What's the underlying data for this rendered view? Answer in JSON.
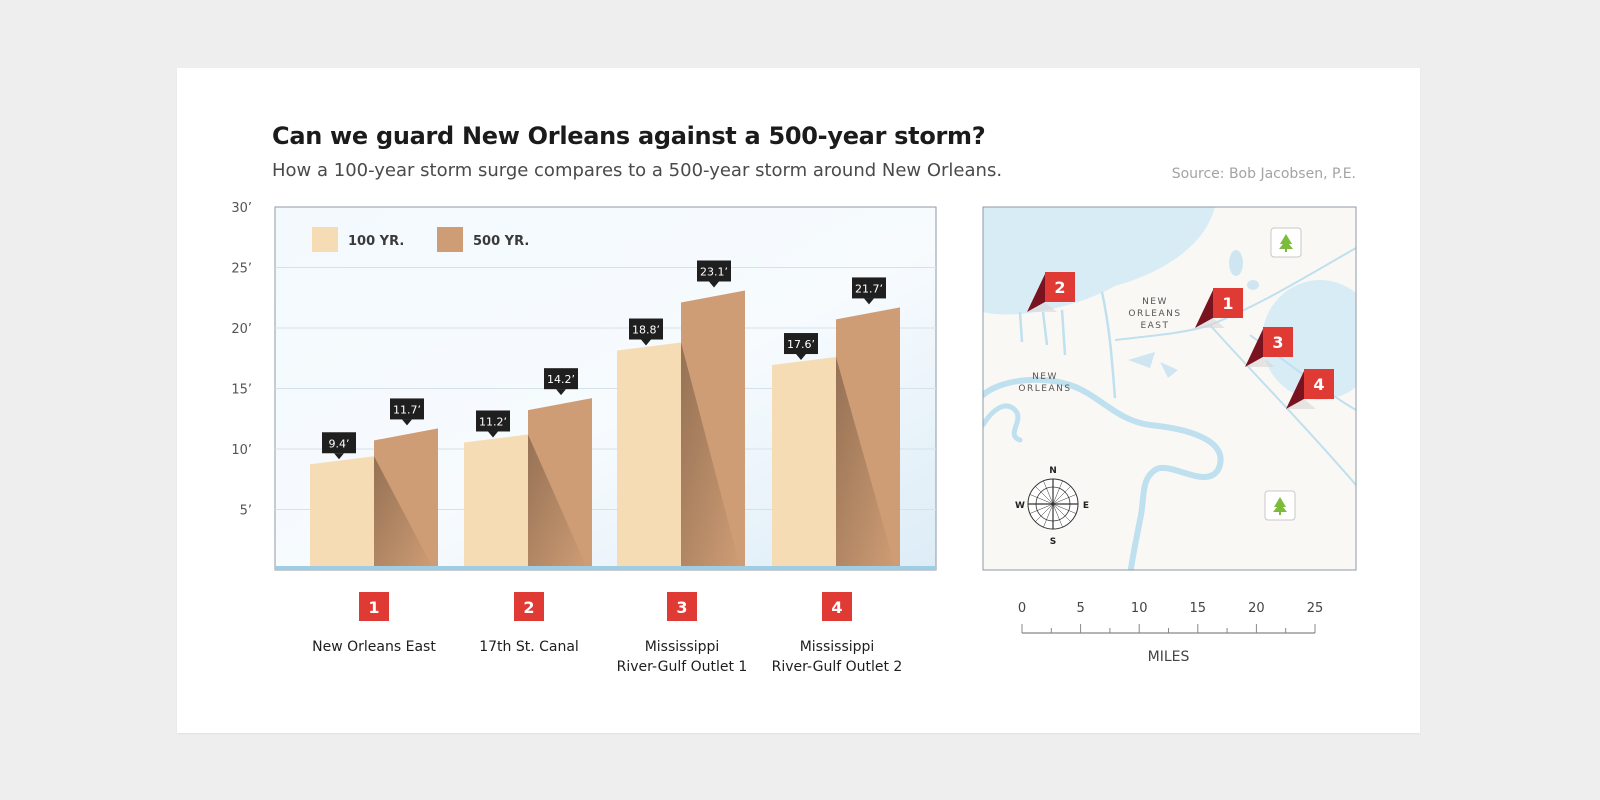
{
  "header": {
    "title": "Can we guard New Orleans against a 500-year storm?",
    "subtitle": "How a 100-year storm surge compares to a 500-year storm around New Orleans.",
    "source": "Source: Bob Jacobsen, P.E."
  },
  "chart_data": {
    "type": "bar",
    "title": "Can we guard New Orleans against a 500-year storm?",
    "ylim": [
      0,
      30
    ],
    "yticks": [
      "5’",
      "10’",
      "15’",
      "20’",
      "25’",
      "30’"
    ],
    "ytick_values": [
      5,
      10,
      15,
      20,
      25,
      30
    ],
    "legend": {
      "placement": "top-left"
    },
    "categories": [
      {
        "num": "1",
        "lines": [
          "New Orleans East"
        ]
      },
      {
        "num": "2",
        "lines": [
          "17th St. Canal"
        ]
      },
      {
        "num": "3",
        "lines": [
          "Mississippi",
          "River-Gulf Outlet 1"
        ]
      },
      {
        "num": "4",
        "lines": [
          "Mississippi",
          "River-Gulf Outlet 2"
        ]
      }
    ],
    "series": [
      {
        "name": "100 YR.",
        "color": "#f6dcb4",
        "values": [
          9.4,
          11.2,
          18.8,
          17.6
        ],
        "labels": [
          "9.4’",
          "11.2’",
          "18.8’",
          "17.6’"
        ]
      },
      {
        "name": "500 YR.",
        "color": "#cf9d75",
        "values": [
          11.7,
          14.2,
          23.1,
          21.7
        ],
        "labels": [
          "11.7’",
          "14.2’",
          "23.1’",
          "21.7’"
        ]
      }
    ]
  },
  "map": {
    "places": [
      {
        "lines": [
          "NEW",
          "ORLEANS",
          "EAST"
        ]
      },
      {
        "lines": [
          "NEW",
          "ORLEANS"
        ]
      }
    ],
    "markers": [
      "2",
      "1",
      "3",
      "4"
    ],
    "compass": {
      "n": "N",
      "s": "S",
      "e": "E",
      "w": "W"
    },
    "scale": {
      "ticks": [
        "0",
        "5",
        "10",
        "15",
        "20",
        "25"
      ],
      "unit": "MILES"
    },
    "icons": [
      "tree-icon",
      "tree-icon"
    ]
  },
  "colors": {
    "marker": "#e03a35",
    "marker_shadow": "#7a1320",
    "water": "#d6ebf5",
    "river": "#bfe0ef",
    "tag": "#1f1f1f"
  }
}
